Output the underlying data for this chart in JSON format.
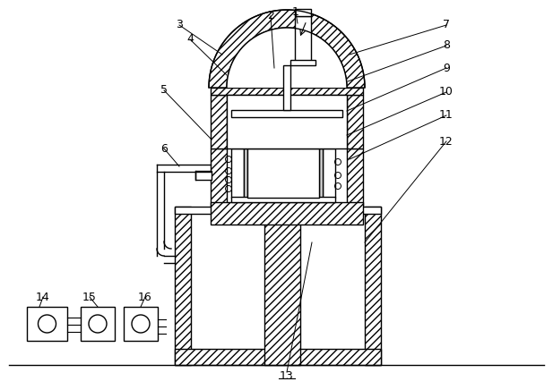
{
  "bg_color": "#ffffff",
  "line_color": "#000000",
  "figsize": [
    6.17,
    4.36
  ],
  "dpi": 100
}
